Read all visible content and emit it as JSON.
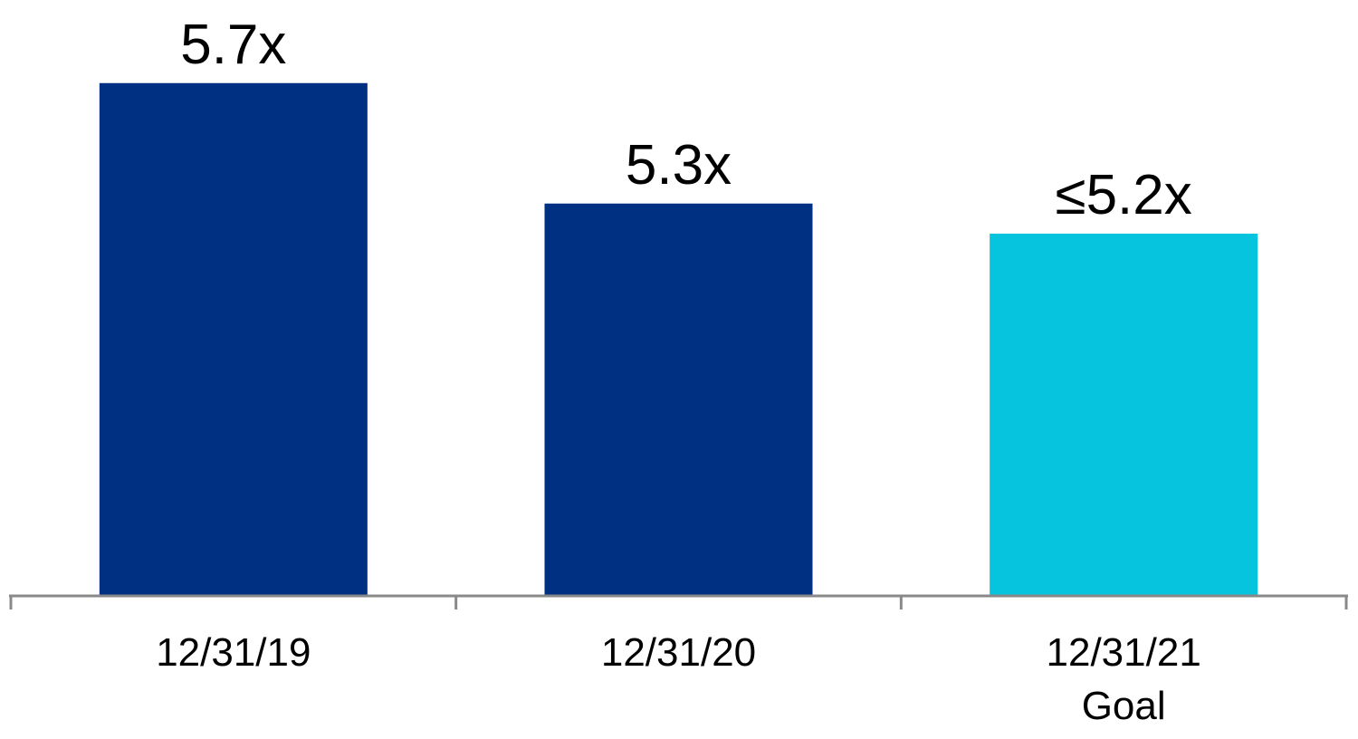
{
  "chart_data": {
    "type": "bar",
    "categories": [
      "12/31/19",
      "12/31/20",
      "12/31/21\nGoal"
    ],
    "category_lines": [
      [
        "12/31/19"
      ],
      [
        "12/31/20"
      ],
      [
        "12/31/21",
        "Goal"
      ]
    ],
    "values": [
      5.7,
      5.3,
      5.2
    ],
    "data_labels": [
      "5.7x",
      "5.3x",
      "≤5.2x"
    ],
    "colors": [
      "#003082",
      "#003082",
      "#06C3DE"
    ],
    "axis_color": "#898989",
    "title": "",
    "xlabel": "",
    "ylabel": "",
    "ylim": [
      4.0,
      6.0
    ],
    "grid": false,
    "legend": "none"
  }
}
